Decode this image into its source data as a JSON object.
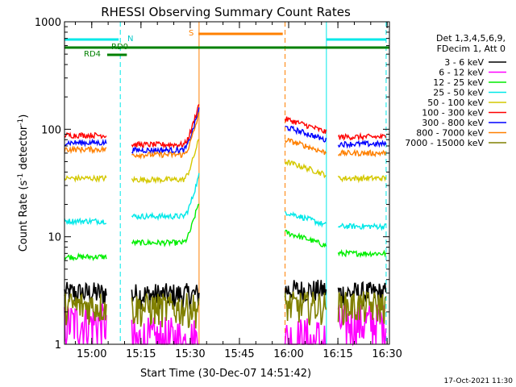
{
  "chart_data": {
    "type": "line",
    "title": "RHESSI Observing Summary Count Rates",
    "xlabel": "Start Time (30-Dec-07 14:51:42)",
    "ylabel_main": "Count Rate (s",
    "ylabel_sup1": "-1",
    "ylabel_mid": " detector",
    "ylabel_sup2": "-1",
    "ylabel_end": ")",
    "y_scale": "log",
    "ylim": [
      1,
      1000
    ],
    "xlim_minutes": [
      0,
      99
    ],
    "x_ticks": [
      {
        "label": "15:00",
        "min": 8.3
      },
      {
        "label": "15:15",
        "min": 23.3
      },
      {
        "label": "15:30",
        "min": 38.3
      },
      {
        "label": "15:45",
        "min": 53.3
      },
      {
        "label": "16:00",
        "min": 68.3
      },
      {
        "label": "16:15",
        "min": 83.3
      },
      {
        "label": "16:30",
        "min": 98.3
      }
    ],
    "y_ticks": [
      {
        "label": "1",
        "value": 1
      },
      {
        "label": "10",
        "value": 10
      },
      {
        "label": "100",
        "value": 100
      },
      {
        "label": "1000",
        "value": 1000
      }
    ],
    "legend": {
      "placement": "right",
      "header1": "Det 1,3,4,5,6,9,",
      "header2": "FDecim 1, Att 0",
      "entries": [
        {
          "label": "3 - 6 keV",
          "color": "#000000"
        },
        {
          "label": "6 - 12 keV",
          "color": "#ff00ff"
        },
        {
          "label": "12 - 25 keV",
          "color": "#00ee00"
        },
        {
          "label": "25 - 50 keV",
          "color": "#00e8e8"
        },
        {
          "label": "50 - 100 keV",
          "color": "#d4c800"
        },
        {
          "label": "100 - 300 keV",
          "color": "#ff0000"
        },
        {
          "label": "300 - 800 keV",
          "color": "#0000ff"
        },
        {
          "label": "800 - 7000 keV",
          "color": "#ff8000"
        },
        {
          "label": "7000 - 15000 keV",
          "color": "#808000"
        }
      ]
    },
    "annotations": {
      "N": "N",
      "RD0": "RD0",
      "RD4": "RD4",
      "S": "S",
      "timestamp": "17-Oct-2021 11:30"
    },
    "segments": [
      {
        "start": 0,
        "end": 12.8
      },
      {
        "start": 20.5,
        "end": 41.0
      },
      {
        "start": 67.2,
        "end": 79.8
      },
      {
        "start": 83.4,
        "end": 98.0
      }
    ],
    "series_levels": [
      {
        "name": "3 - 6 keV",
        "values": [
          3.0,
          2.9,
          3.2,
          3.0
        ]
      },
      {
        "name": "6 - 12 keV",
        "values": [
          1.6,
          1.0,
          1.0,
          1.6
        ]
      },
      {
        "name": "12 - 25 keV",
        "values": [
          6.5,
          8.8,
          11.0,
          7.0
        ]
      },
      {
        "name": "25 - 50 keV",
        "values": [
          14.0,
          15.5,
          17.0,
          12.5
        ]
      },
      {
        "name": "50 - 100 keV",
        "values": [
          35.0,
          34.0,
          50.0,
          35.0
        ]
      },
      {
        "name": "100 - 300 keV",
        "values": [
          88.0,
          72.0,
          125.0,
          85.0
        ]
      },
      {
        "name": "300 - 800 keV",
        "values": [
          75.0,
          64.0,
          105.0,
          73.0
        ]
      },
      {
        "name": "800 - 7000 keV",
        "values": [
          65.0,
          58.0,
          80.0,
          60.0
        ]
      },
      {
        "name": "7000 - 15000 keV",
        "values": [
          2.3,
          2.2,
          2.3,
          2.3
        ]
      }
    ],
    "flags": {
      "N_bars": [
        {
          "start": 0,
          "end": 16.5
        },
        {
          "start": 79.8,
          "end": 98.0
        }
      ],
      "RD0_bar": [
        0,
        99
      ],
      "RD4_bar": [
        13.0,
        19.0
      ],
      "S_bar": [
        40.8,
        66.5
      ],
      "N_color": "#00e8e8",
      "RD_color": "#008000",
      "S_color": "#ff8000"
    },
    "vlines": [
      {
        "min": 17.0,
        "color": "#00e8e8",
        "style": "dashed"
      },
      {
        "min": 41.0,
        "color": "#ff8000",
        "style": "solid"
      },
      {
        "min": 67.2,
        "color": "#ff8000",
        "style": "dashed"
      },
      {
        "min": 79.8,
        "color": "#00e8e8",
        "style": "solid"
      },
      {
        "min": 98.0,
        "color": "#00e8e8",
        "style": "dashed"
      }
    ]
  }
}
